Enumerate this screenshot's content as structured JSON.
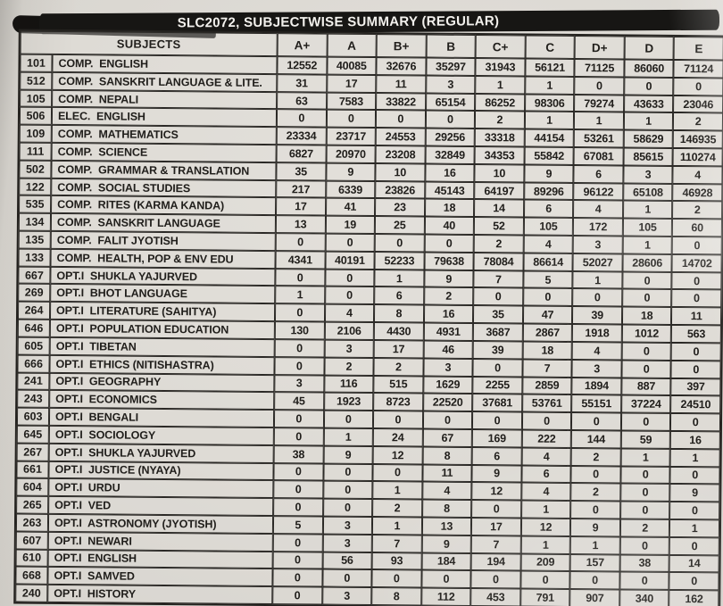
{
  "title": "SLC2072, SUBJECTWISE SUMMARY (REGULAR)",
  "colors": {
    "paper": "#dad7d1",
    "ink": "#201e1b",
    "title_bar": "#171614",
    "title_text": "#f3f1ed",
    "grid_line": "#2a2825"
  },
  "table": {
    "subject_header": "SUBJECTS",
    "grade_headers": [
      "A+",
      "A",
      "B+",
      "B",
      "C+",
      "C",
      "D+",
      "D",
      "E"
    ],
    "rows": [
      {
        "code": "101",
        "subject": "COMP.  ENGLISH",
        "values": [
          12552,
          40085,
          32676,
          35297,
          31943,
          56121,
          71125,
          86060,
          71124
        ]
      },
      {
        "code": "512",
        "subject": "COMP.  SANSKRIT LANGUAGE & LITE.",
        "values": [
          31,
          17,
          11,
          3,
          1,
          1,
          0,
          0,
          0
        ]
      },
      {
        "code": "105",
        "subject": "COMP.  NEPALI",
        "values": [
          63,
          7583,
          33822,
          65154,
          86252,
          98306,
          79274,
          43633,
          23046
        ]
      },
      {
        "code": "506",
        "subject": "ELEC.  ENGLISH",
        "values": [
          0,
          0,
          0,
          0,
          2,
          1,
          1,
          1,
          2
        ]
      },
      {
        "code": "109",
        "subject": "COMP.  MATHEMATICS",
        "values": [
          23334,
          23717,
          24553,
          29256,
          33318,
          44154,
          53261,
          58629,
          146935
        ]
      },
      {
        "code": "111",
        "subject": "COMP.  SCIENCE",
        "values": [
          6827,
          20970,
          23208,
          32849,
          34353,
          55842,
          67081,
          85615,
          110274
        ]
      },
      {
        "code": "502",
        "subject": "COMP.  GRAMMAR & TRANSLATION",
        "values": [
          35,
          9,
          10,
          16,
          10,
          9,
          6,
          3,
          4
        ]
      },
      {
        "code": "122",
        "subject": "COMP.  SOCIAL STUDIES",
        "values": [
          217,
          6339,
          23826,
          45143,
          64197,
          89296,
          96122,
          65108,
          46928
        ]
      },
      {
        "code": "535",
        "subject": "COMP.  RITES (KARMA KANDA)",
        "values": [
          17,
          41,
          23,
          18,
          14,
          6,
          4,
          1,
          2
        ]
      },
      {
        "code": "134",
        "subject": "COMP.  SANSKRIT LANGUAGE",
        "values": [
          13,
          19,
          25,
          40,
          52,
          105,
          172,
          105,
          60
        ]
      },
      {
        "code": "135",
        "subject": "COMP.  FALIT JYOTISH",
        "values": [
          0,
          0,
          0,
          0,
          2,
          4,
          3,
          1,
          0
        ]
      },
      {
        "code": "133",
        "subject": "COMP.  HEALTH, POP & ENV EDU",
        "values": [
          4341,
          40191,
          52233,
          79638,
          78084,
          86614,
          52027,
          28606,
          14702
        ]
      },
      {
        "code": "667",
        "subject": "OPT.I  SHUKLA YAJURVED",
        "values": [
          0,
          0,
          1,
          9,
          7,
          5,
          1,
          0,
          0
        ]
      },
      {
        "code": "269",
        "subject": "OPT.I  BHOT LANGUAGE",
        "values": [
          1,
          0,
          6,
          2,
          0,
          0,
          0,
          0,
          0
        ]
      },
      {
        "code": "264",
        "subject": "OPT.I  LITERATURE (SAHITYA)",
        "values": [
          0,
          4,
          8,
          16,
          35,
          47,
          39,
          18,
          11
        ]
      },
      {
        "code": "646",
        "subject": "OPT.I  POPULATION EDUCATION",
        "values": [
          130,
          2106,
          4430,
          4931,
          3687,
          2867,
          1918,
          1012,
          563
        ]
      },
      {
        "code": "605",
        "subject": "OPT.I  TIBETAN",
        "values": [
          0,
          3,
          17,
          46,
          39,
          18,
          4,
          0,
          0
        ]
      },
      {
        "code": "666",
        "subject": "OPT.I  ETHICS (NITISHASTRA)",
        "values": [
          0,
          2,
          2,
          3,
          0,
          7,
          3,
          0,
          0
        ]
      },
      {
        "code": "241",
        "subject": "OPT.I  GEOGRAPHY",
        "values": [
          3,
          116,
          515,
          1629,
          2255,
          2859,
          1894,
          887,
          397
        ]
      },
      {
        "code": "243",
        "subject": "OPT.I  ECONOMICS",
        "values": [
          45,
          1923,
          8723,
          22520,
          37681,
          53761,
          55151,
          37224,
          24510
        ]
      },
      {
        "code": "603",
        "subject": "OPT.I  BENGALI",
        "values": [
          0,
          0,
          0,
          0,
          0,
          0,
          0,
          0,
          0
        ]
      },
      {
        "code": "645",
        "subject": "OPT.I  SOCIOLOGY",
        "values": [
          0,
          1,
          24,
          67,
          169,
          222,
          144,
          59,
          16
        ]
      },
      {
        "code": "267",
        "subject": "OPT.I  SHUKLA YAJURVED",
        "values": [
          38,
          9,
          12,
          8,
          6,
          4,
          2,
          1,
          1
        ]
      },
      {
        "code": "661",
        "subject": "OPT.I  JUSTICE (NYAYA)",
        "values": [
          0,
          0,
          0,
          11,
          9,
          6,
          0,
          0,
          0
        ]
      },
      {
        "code": "604",
        "subject": "OPT.I  URDU",
        "values": [
          0,
          0,
          1,
          4,
          12,
          4,
          2,
          0,
          9
        ]
      },
      {
        "code": "265",
        "subject": "OPT.I  VED",
        "values": [
          0,
          0,
          2,
          8,
          0,
          1,
          0,
          0,
          0
        ]
      },
      {
        "code": "263",
        "subject": "OPT.I  ASTRONOMY (JYOTISH)",
        "values": [
          5,
          3,
          1,
          13,
          17,
          12,
          9,
          2,
          1
        ]
      },
      {
        "code": "607",
        "subject": "OPT.I  NEWARI",
        "values": [
          0,
          3,
          7,
          9,
          7,
          1,
          1,
          0,
          0
        ]
      },
      {
        "code": "610",
        "subject": "OPT.I  ENGLISH",
        "values": [
          0,
          56,
          93,
          184,
          194,
          209,
          157,
          38,
          14
        ]
      },
      {
        "code": "668",
        "subject": "OPT.I  SAMVED",
        "values": [
          0,
          0,
          0,
          0,
          0,
          0,
          0,
          0,
          0
        ]
      },
      {
        "code": "240",
        "subject": "OPT.I  HISTORY",
        "values": [
          0,
          3,
          8,
          112,
          453,
          791,
          907,
          340,
          162
        ]
      }
    ]
  }
}
